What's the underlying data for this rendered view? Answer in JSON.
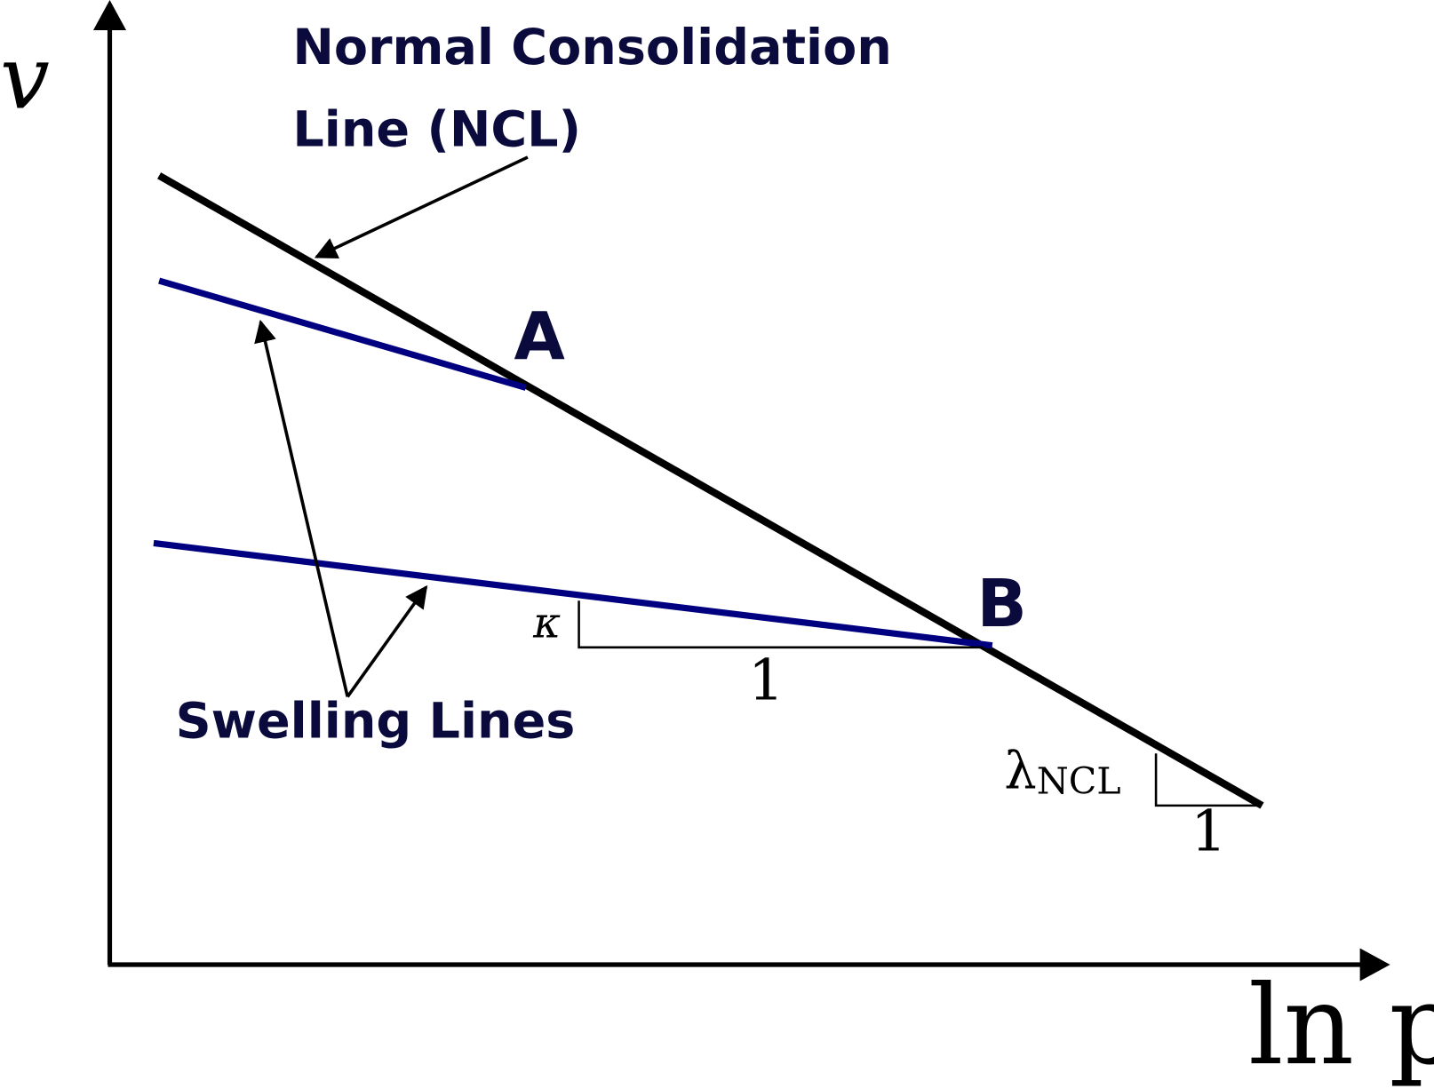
{
  "axes": {
    "y_label": "v",
    "x_label": "ln p"
  },
  "labels": {
    "ncl_line1": "Normal Consolidation",
    "ncl_line2": "Line (NCL)",
    "point_a": "A",
    "point_b": "B",
    "swelling": "Swelling Lines",
    "kappa": "κ",
    "kappa_run": "1",
    "lambda": "λ",
    "lambda_sub": "NCL",
    "lambda_run": "1"
  },
  "colors": {
    "ncl": "#000000",
    "swelling": "#000080",
    "text": "#0a0a3c"
  }
}
